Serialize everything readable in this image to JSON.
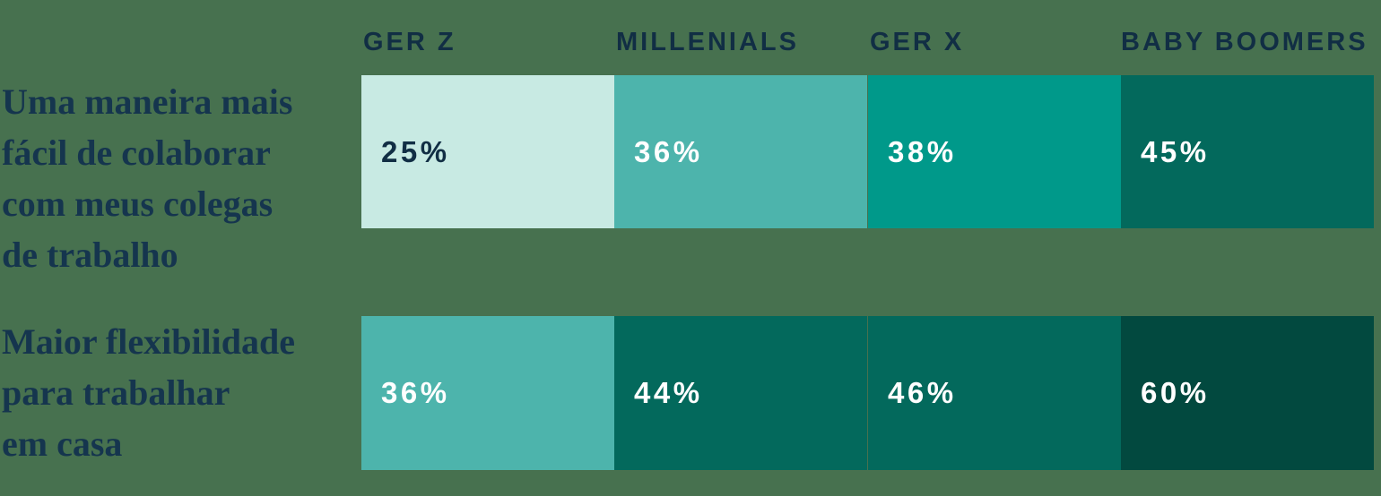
{
  "colors": {
    "background": "#47714f",
    "header_text": "#112e44",
    "label_text": "#15354e",
    "value_text_light": "#ffffff",
    "value_text_dark": "#112e44"
  },
  "chart_data": {
    "type": "heatmap",
    "value_format": "percent",
    "legend": "none",
    "columns": [
      "GER Z",
      "MILLENIALS",
      "GER X",
      "BABY BOOMERS"
    ],
    "rows": [
      {
        "label": "Uma maneira mais fácil de colaborar com meus colegas de trabalho",
        "label_lines": [
          "Uma maneira mais",
          "fácil de colaborar",
          "com meus colegas",
          "de trabalho"
        ],
        "values": [
          25,
          36,
          38,
          45
        ],
        "display": [
          "25%",
          "36%",
          "38%",
          "45%"
        ],
        "cell_colors": [
          "#c8eae3",
          "#4db4ac",
          "#00998a",
          "#03695c"
        ],
        "text_colors": [
          "#112e44",
          "#ffffff",
          "#ffffff",
          "#ffffff"
        ]
      },
      {
        "label": "Maior flexibilidade para trabalhar em casa",
        "label_lines": [
          "Maior flexibilidade",
          "para trabalhar",
          "em casa"
        ],
        "values": [
          36,
          44,
          46,
          60
        ],
        "display": [
          "36%",
          "44%",
          "46%",
          "60%"
        ],
        "cell_colors": [
          "#4db4ac",
          "#03695c",
          "#03695c",
          "#02493f"
        ],
        "text_colors": [
          "#ffffff",
          "#ffffff",
          "#ffffff",
          "#ffffff"
        ]
      }
    ]
  }
}
